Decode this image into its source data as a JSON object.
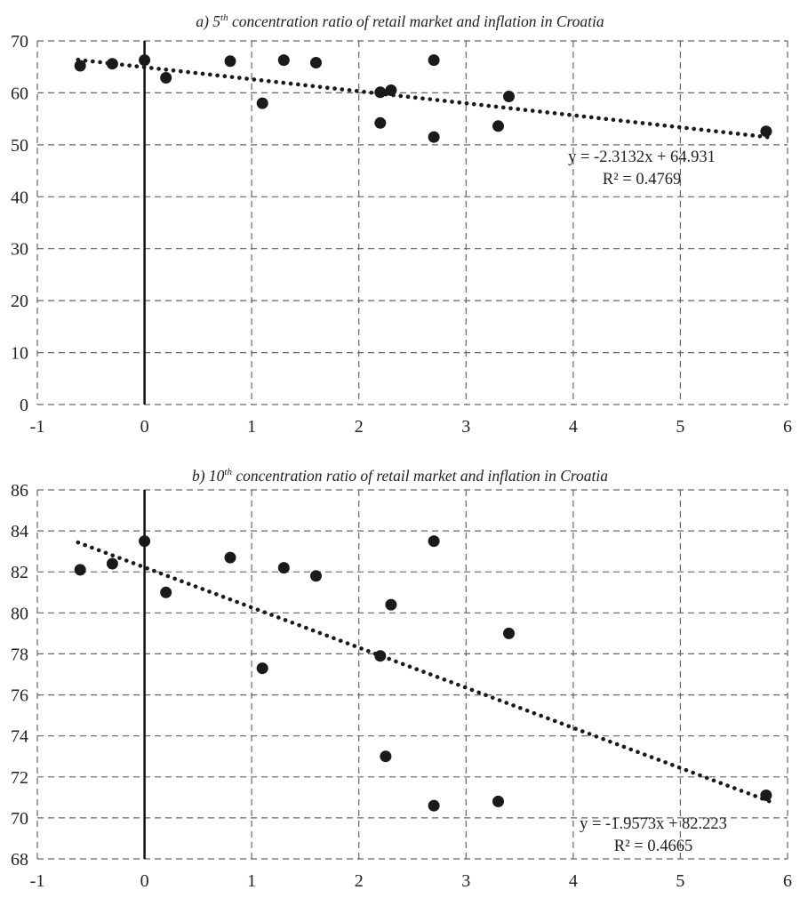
{
  "page": {
    "background": "#ffffff",
    "ink_color": "#1a1a1a",
    "grid_color": "#666666"
  },
  "chart_data": [
    {
      "type": "scatter",
      "title": "a) 5th concentration ratio of retail market and inflation in Croatia",
      "title_prefix": "a) 5",
      "title_sup": "th",
      "title_rest": " concentration ratio of retail market and inflation in Croatia",
      "xlabel": "",
      "ylabel": "",
      "xlim": [
        -1,
        6
      ],
      "ylim": [
        0,
        70
      ],
      "xticks": [
        -1,
        0,
        1,
        2,
        3,
        4,
        5,
        6
      ],
      "yticks": [
        0,
        10,
        20,
        30,
        40,
        50,
        60,
        70
      ],
      "grid": "dashed",
      "legend": "none",
      "points": [
        [
          -0.6,
          65.2
        ],
        [
          -0.3,
          65.6
        ],
        [
          0.0,
          66.3
        ],
        [
          0.2,
          62.9
        ],
        [
          0.8,
          66.1
        ],
        [
          1.1,
          58.0
        ],
        [
          1.3,
          66.3
        ],
        [
          1.6,
          65.8
        ],
        [
          2.2,
          60.1
        ],
        [
          2.2,
          54.2
        ],
        [
          2.3,
          60.5
        ],
        [
          2.7,
          66.3
        ],
        [
          2.7,
          51.5
        ],
        [
          3.3,
          53.6
        ],
        [
          3.4,
          59.3
        ],
        [
          5.8,
          52.6
        ]
      ],
      "trendline": {
        "style": "dotted",
        "slope": -2.3132,
        "intercept": 64.931,
        "x_start": -0.62,
        "x_end": 5.85,
        "equation": "y = -2.3132x + 64.931",
        "r2_label": "R² = 0.4769"
      }
    },
    {
      "type": "scatter",
      "title": "b) 10th concentration ratio of retail market and inflation in Croatia",
      "title_prefix": "b) 10",
      "title_sup": "th",
      "title_rest": " concentration ratio of retail market and inflation in Croatia",
      "xlabel": "",
      "ylabel": "",
      "xlim": [
        -1,
        6
      ],
      "ylim": [
        68,
        86
      ],
      "xticks": [
        -1,
        0,
        1,
        2,
        3,
        4,
        5,
        6
      ],
      "yticks": [
        68,
        70,
        72,
        74,
        76,
        78,
        80,
        82,
        84,
        86
      ],
      "grid": "dashed",
      "legend": "none",
      "points": [
        [
          -0.6,
          82.1
        ],
        [
          -0.3,
          82.4
        ],
        [
          0.0,
          83.5
        ],
        [
          0.2,
          81.0
        ],
        [
          0.8,
          82.7
        ],
        [
          1.1,
          77.3
        ],
        [
          1.3,
          82.2
        ],
        [
          1.6,
          81.8
        ],
        [
          2.2,
          77.9
        ],
        [
          2.25,
          73.0
        ],
        [
          2.3,
          80.4
        ],
        [
          2.7,
          83.5
        ],
        [
          2.7,
          70.6
        ],
        [
          3.3,
          70.8
        ],
        [
          3.4,
          79.0
        ],
        [
          5.8,
          71.1
        ]
      ],
      "trendline": {
        "style": "dotted",
        "slope": -1.9573,
        "intercept": 82.223,
        "x_start": -0.62,
        "x_end": 5.85,
        "equation": "y = -1.9573x + 82.223",
        "r2_label": "R² = 0.4665"
      }
    }
  ]
}
